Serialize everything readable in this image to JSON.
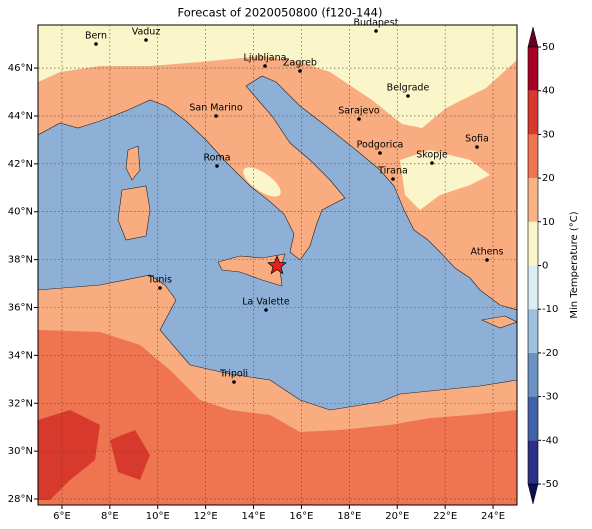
{
  "title": "Forecast of 2020050800 (f120-144)",
  "map": {
    "xlim": [
      5,
      25
    ],
    "ylim": [
      27.75,
      47.8
    ],
    "xticks": [
      {
        "value": 6,
        "label": "6°E"
      },
      {
        "value": 8,
        "label": "8°E"
      },
      {
        "value": 10,
        "label": "10°E"
      },
      {
        "value": 12,
        "label": "12°E"
      },
      {
        "value": 14,
        "label": "14°E"
      },
      {
        "value": 16,
        "label": "16°E"
      },
      {
        "value": 18,
        "label": "18°E"
      },
      {
        "value": 20,
        "label": "20°E"
      },
      {
        "value": 22,
        "label": "22°E"
      },
      {
        "value": 24,
        "label": "24°E"
      }
    ],
    "yticks": [
      {
        "value": 28,
        "label": "28°N"
      },
      {
        "value": 30,
        "label": "30°N"
      },
      {
        "value": 32,
        "label": "32°N"
      },
      {
        "value": 34,
        "label": "34°N"
      },
      {
        "value": 36,
        "label": "36°N"
      },
      {
        "value": 38,
        "label": "38°N"
      },
      {
        "value": 40,
        "label": "40°N"
      },
      {
        "value": 42,
        "label": "42°N"
      },
      {
        "value": 44,
        "label": "44°N"
      },
      {
        "value": 46,
        "label": "46°N"
      }
    ],
    "grid": true,
    "cities": [
      "Bern",
      "Vaduz",
      "Ljubljana",
      "Zagreb",
      "Budapest",
      "Belgrade",
      "San Marino",
      "Sarajevo",
      "Roma",
      "Podgorica",
      "Skopje",
      "Sofia",
      "Tirana",
      "Athens",
      "Tunis",
      "La Valette",
      "Tripoli"
    ]
  },
  "colorbar": {
    "label": "Min Temperature (°C)",
    "lim": [
      -50,
      50
    ],
    "ticks": [
      -50,
      -40,
      -30,
      -20,
      -10,
      0,
      10,
      20,
      30,
      40,
      50
    ],
    "colors": [
      "#2c2f8a",
      "#3f63a8",
      "#6a93c4",
      "#9dc1dc",
      "#dbeef4",
      "#fbf6c9",
      "#f8b486",
      "#ef7450",
      "#d73a2c",
      "#a50026"
    ]
  }
}
